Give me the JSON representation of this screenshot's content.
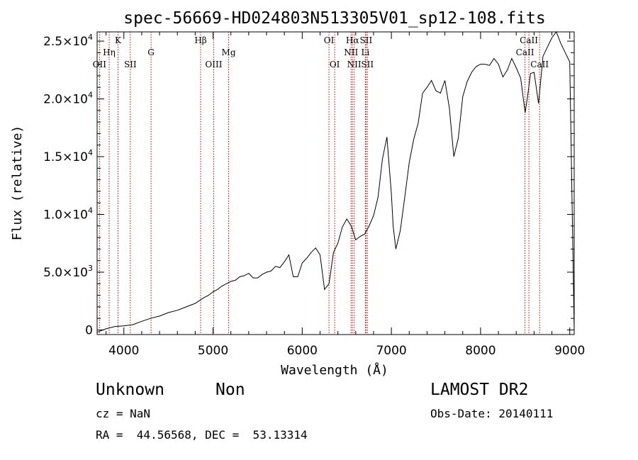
{
  "chart_data": {
    "type": "line",
    "title": "spec-56669-HD024803N513305V01_sp12-108.fits",
    "xlabel": "Wavelength (Å)",
    "ylabel": "Flux (relative)",
    "xlim": [
      3700,
      9050
    ],
    "ylim": [
      -400,
      25800
    ],
    "x_ticks": [
      4000,
      5000,
      6000,
      7000,
      8000,
      9000
    ],
    "x_tick_labels": [
      "4000",
      "5000",
      "6000",
      "7000",
      "8000",
      "9000"
    ],
    "y_ticks": [
      0,
      5000,
      10000,
      15000,
      20000,
      25000
    ],
    "y_tick_labels": [
      {
        "mant": "0",
        "exp": ""
      },
      {
        "mant": "5.0×10",
        "exp": "3"
      },
      {
        "mant": "1.0×10",
        "exp": "4"
      },
      {
        "mant": "1.5×10",
        "exp": "4"
      },
      {
        "mant": "2.0×10",
        "exp": "4"
      },
      {
        "mant": "2.5×10",
        "exp": "4"
      }
    ],
    "grid": false,
    "series": [
      {
        "color": "#000000",
        "x": [
          3700,
          3800,
          3900,
          4000,
          4100,
          4200,
          4300,
          4400,
          4500,
          4600,
          4700,
          4800,
          4860,
          4900,
          4950,
          5000,
          5050,
          5100,
          5150,
          5200,
          5250,
          5300,
          5350,
          5400,
          5450,
          5500,
          5550,
          5600,
          5650,
          5700,
          5750,
          5800,
          5850,
          5900,
          5950,
          6000,
          6050,
          6100,
          6150,
          6200,
          6250,
          6300,
          6350,
          6400,
          6450,
          6500,
          6550,
          6600,
          6650,
          6700,
          6750,
          6800,
          6850,
          6900,
          6950,
          7000,
          7020,
          7050,
          7100,
          7150,
          7200,
          7250,
          7300,
          7350,
          7400,
          7450,
          7500,
          7550,
          7600,
          7650,
          7700,
          7750,
          7800,
          7850,
          7900,
          7950,
          8000,
          8050,
          8100,
          8150,
          8200,
          8250,
          8300,
          8350,
          8400,
          8450,
          8500,
          8530,
          8560,
          8600,
          8650,
          8700,
          8750,
          8800,
          8850,
          8900,
          8950,
          9000,
          9050
        ],
        "y": [
          -200,
          100,
          300,
          350,
          450,
          750,
          1000,
          1200,
          1500,
          1700,
          2000,
          2300,
          2600,
          2800,
          3000,
          3300,
          3500,
          3800,
          4000,
          4200,
          4300,
          4600,
          4700,
          4900,
          4500,
          4500,
          4800,
          5000,
          5100,
          5500,
          5400,
          5900,
          6500,
          4600,
          4600,
          5800,
          6200,
          6700,
          7100,
          6500,
          3500,
          4000,
          6700,
          7500,
          8900,
          9600,
          9000,
          7800,
          8100,
          8300,
          9000,
          9900,
          11500,
          14800,
          16700,
          11800,
          9000,
          7000,
          8600,
          11500,
          14500,
          16500,
          17900,
          20500,
          21000,
          21600,
          20700,
          20500,
          21600,
          19200,
          15000,
          16600,
          20200,
          21500,
          22300,
          22800,
          23000,
          23000,
          22900,
          23500,
          23000,
          21900,
          22500,
          23500,
          22700,
          21800,
          18800,
          20400,
          22200,
          22300,
          19600,
          23700,
          24500,
          25300,
          25800,
          24800,
          24000,
          23200,
          0
        ]
      }
    ],
    "emission_lines": [
      {
        "label": "OII",
        "x": 3727,
        "row": 3
      },
      {
        "label": "Hη",
        "x": 3835,
        "row": 2
      },
      {
        "label": "K",
        "x": 3934,
        "row": 1
      },
      {
        "label": "SII",
        "x": 4072,
        "row": 3
      },
      {
        "label": "G",
        "x": 4305,
        "row": 2
      },
      {
        "label": "Hβ",
        "x": 4861,
        "row": 1
      },
      {
        "label": "OIII",
        "x": 5007,
        "row": 3
      },
      {
        "label": "Mg",
        "x": 5175,
        "row": 2
      },
      {
        "label": "OI",
        "x": 6300,
        "row": 1
      },
      {
        "label": "OI",
        "x": 6364,
        "row": 3
      },
      {
        "label": "NII",
        "x": 6548,
        "row": 2
      },
      {
        "label": "Hα",
        "x": 6563,
        "row": 1
      },
      {
        "label": "NII",
        "x": 6583,
        "row": 3
      },
      {
        "label": "SII",
        "x": 6716,
        "row": 1
      },
      {
        "label": "Li",
        "x": 6708,
        "row": 2
      },
      {
        "label": "SII",
        "x": 6731,
        "row": 3
      },
      {
        "label": "CaII",
        "x": 8498,
        "row": 2
      },
      {
        "label": "CaII",
        "x": 8542,
        "row": 1
      },
      {
        "label": "CaII",
        "x": 8662,
        "row": 3
      }
    ]
  },
  "info": {
    "object_class": "Unknown",
    "subclass": "Non",
    "survey": "LAMOST DR2",
    "cz": "cz = NaN",
    "obs_date": "Obs-Date: 20140111",
    "coords": "RA =  44.56568, DEC =  53.13314"
  }
}
